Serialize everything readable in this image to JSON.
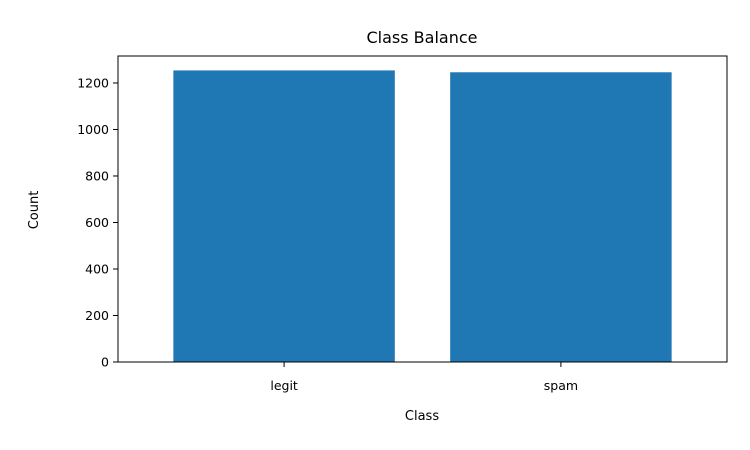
{
  "chart_data": {
    "type": "bar",
    "title": "Class Balance",
    "xlabel": "Class",
    "ylabel": "Count",
    "categories": [
      "legit",
      "spam"
    ],
    "values": [
      1254,
      1246
    ],
    "ylim": [
      0,
      1316
    ],
    "yticks": [
      0,
      200,
      400,
      600,
      800,
      1000,
      1200
    ],
    "bar_color": "#1f77b4",
    "grid": false,
    "legend": "none"
  }
}
